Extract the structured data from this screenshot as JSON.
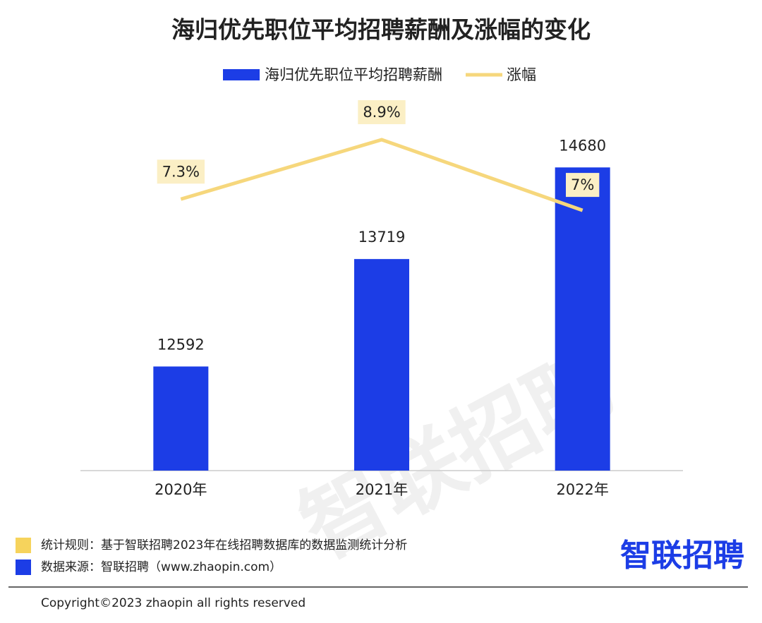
{
  "chart_data": {
    "type": "bar-line",
    "title": "海归优先职位平均招聘薪酬及涨幅的变化",
    "categories": [
      "2020年",
      "2021年",
      "2022年"
    ],
    "series": [
      {
        "name": "海归优先职位平均招聘薪酬",
        "type": "bar",
        "color": "#1c3de6",
        "values": [
          12592,
          13719,
          14680
        ]
      },
      {
        "name": "涨幅",
        "type": "line",
        "axis": "y2",
        "color": "#f6d77c",
        "values": [
          7.3,
          8.9,
          7
        ],
        "value_labels": [
          "7.3%",
          "8.9%",
          "7%"
        ]
      }
    ],
    "ylim": [
      11500,
      15400
    ],
    "y2lim": [
      0,
      10
    ]
  },
  "watermark": "智联招聘",
  "footer": {
    "rule": "统计规则：基于智联招聘2023年在线招聘数据库的数据监测统计分析",
    "source": "数据来源：智联招聘（www.zhaopin.com）",
    "logo": "智联招聘",
    "copyright": "Copyright©2023 zhaopin all rights reserved"
  }
}
